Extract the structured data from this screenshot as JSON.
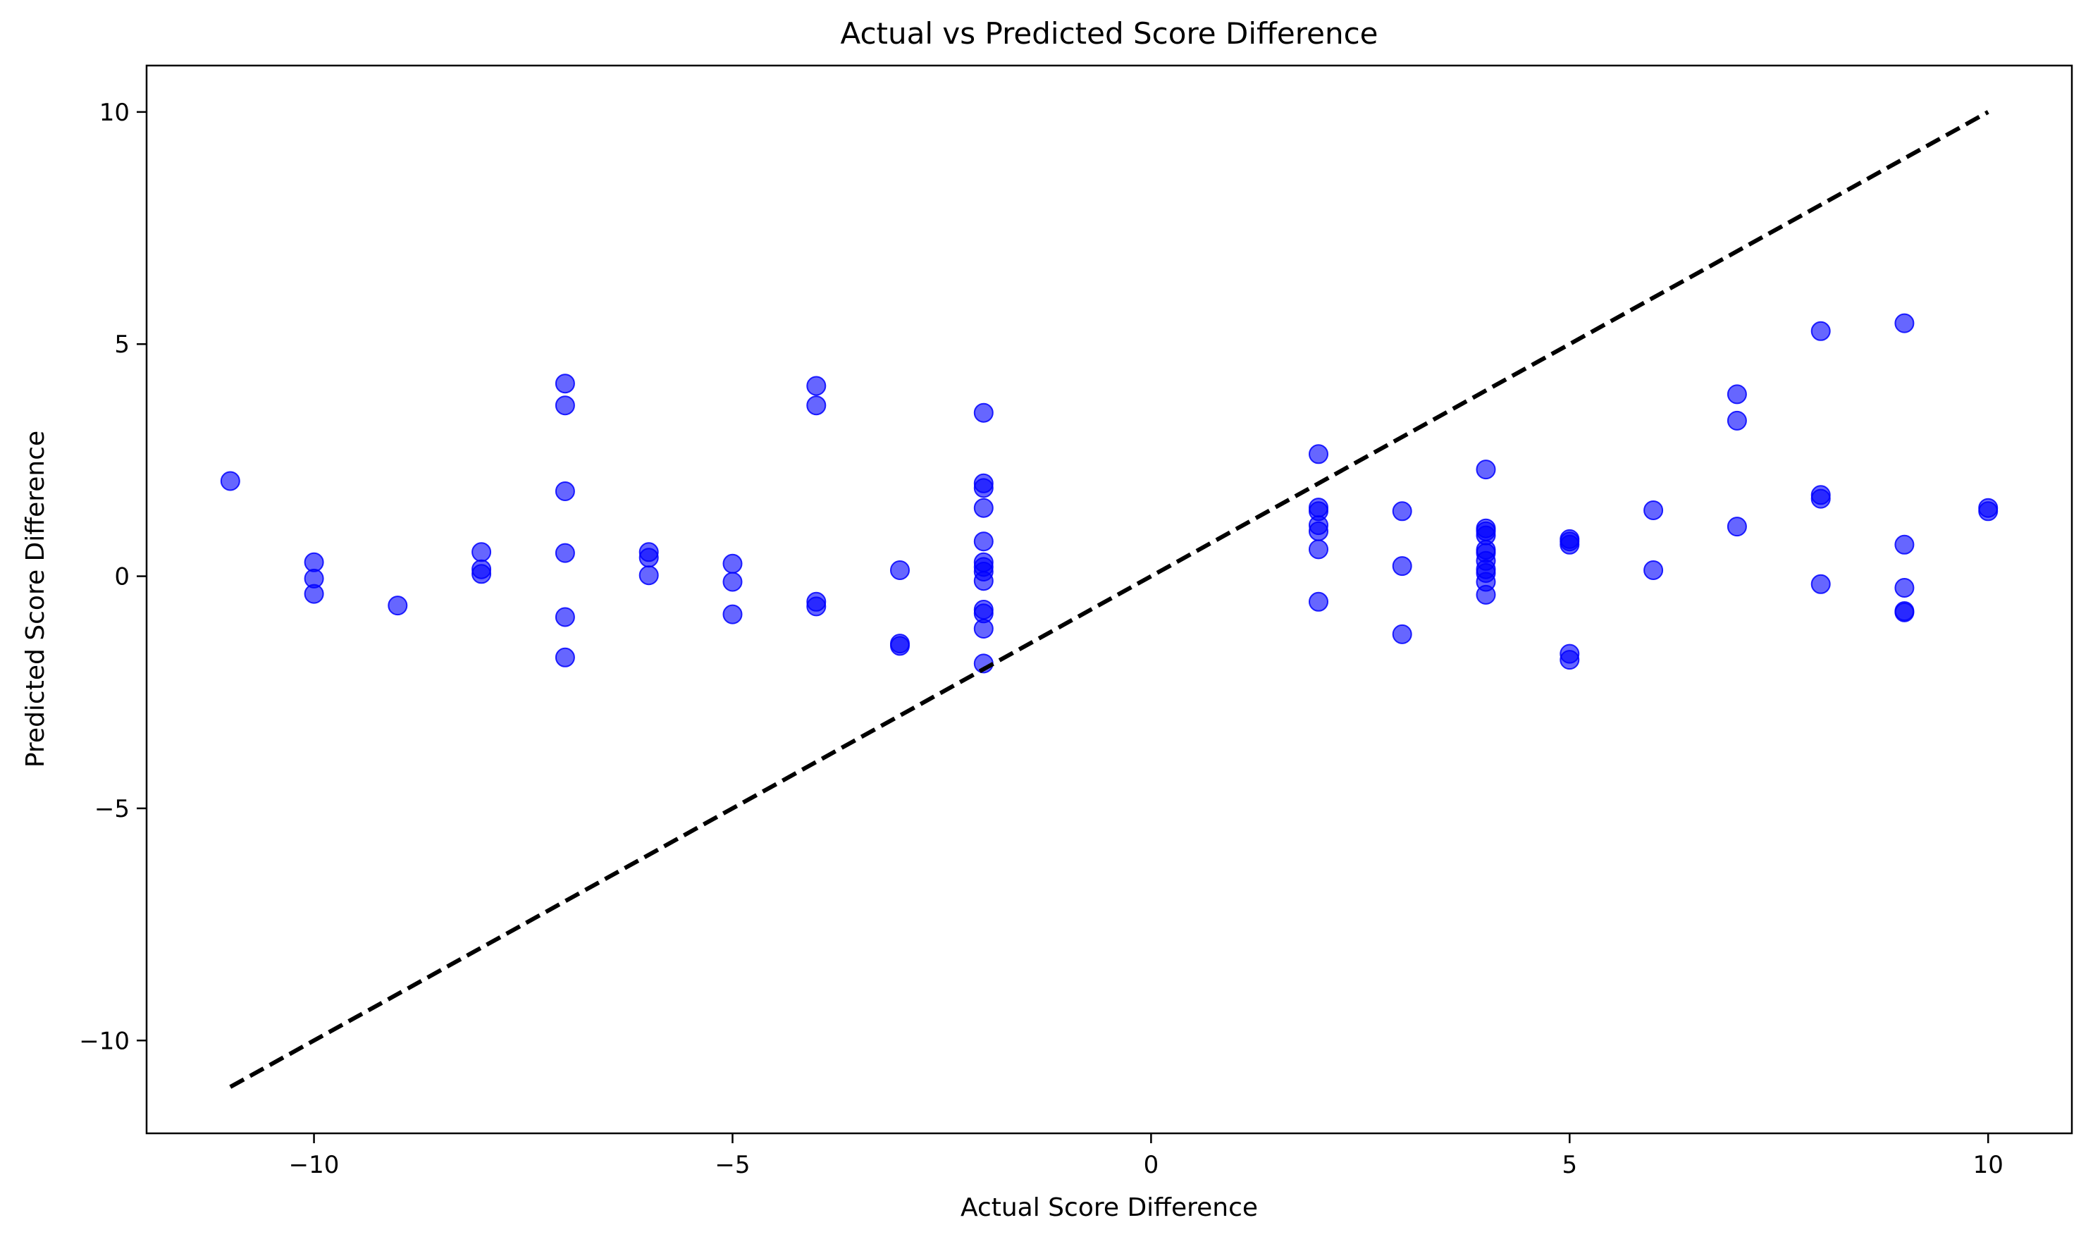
{
  "chart_data": {
    "type": "scatter",
    "title": "Actual vs Predicted Score Difference",
    "xlabel": "Actual Score Difference",
    "ylabel": "Predicted Score Difference",
    "xlim": [
      -12,
      11
    ],
    "ylim": [
      -12,
      11
    ],
    "xticks": [
      -10,
      -5,
      0,
      5,
      10
    ],
    "yticks": [
      -10,
      -5,
      0,
      5,
      10
    ],
    "xtick_labels": [
      "−10",
      "−5",
      "0",
      "5",
      "10"
    ],
    "ytick_labels": [
      "−10",
      "−5",
      "0",
      "5",
      "10"
    ],
    "grid": false,
    "point_color": "#0000ff",
    "point_alpha": 0.6,
    "reference_line": {
      "style": "dashed",
      "color": "#000000",
      "x": [
        -11,
        10
      ],
      "y": [
        -11,
        10
      ]
    },
    "points": [
      [
        -11,
        2.05
      ],
      [
        -10,
        0.3
      ],
      [
        -10,
        -0.05
      ],
      [
        -10,
        -0.38
      ],
      [
        -9,
        -0.63
      ],
      [
        -8,
        0.52
      ],
      [
        -8,
        0.15
      ],
      [
        -8,
        0.05
      ],
      [
        -7,
        4.15
      ],
      [
        -7,
        3.68
      ],
      [
        -7,
        1.83
      ],
      [
        -7,
        0.5
      ],
      [
        -7,
        -0.88
      ],
      [
        -7,
        -1.75
      ],
      [
        -6,
        0.52
      ],
      [
        -6,
        0.4
      ],
      [
        -6,
        0.02
      ],
      [
        -5,
        0.27
      ],
      [
        -5,
        -0.12
      ],
      [
        -5,
        -0.82
      ],
      [
        -4,
        4.1
      ],
      [
        -4,
        3.68
      ],
      [
        -4,
        -0.55
      ],
      [
        -4,
        -0.65
      ],
      [
        -3,
        0.13
      ],
      [
        -3,
        -1.45
      ],
      [
        -3,
        -1.5
      ],
      [
        -2,
        3.52
      ],
      [
        -2,
        2.0
      ],
      [
        -2,
        1.9
      ],
      [
        -2,
        1.47
      ],
      [
        -2,
        0.75
      ],
      [
        -2,
        0.3
      ],
      [
        -2,
        0.2
      ],
      [
        -2,
        0.1
      ],
      [
        -2,
        -0.1
      ],
      [
        -2,
        -0.72
      ],
      [
        -2,
        -0.8
      ],
      [
        -2,
        -1.13
      ],
      [
        -2,
        -1.88
      ],
      [
        2,
        2.63
      ],
      [
        2,
        1.48
      ],
      [
        2,
        1.4
      ],
      [
        2,
        1.1
      ],
      [
        2,
        0.97
      ],
      [
        2,
        0.58
      ],
      [
        2,
        -0.55
      ],
      [
        3,
        1.4
      ],
      [
        3,
        0.22
      ],
      [
        3,
        -1.25
      ],
      [
        4,
        2.3
      ],
      [
        4,
        1.03
      ],
      [
        4,
        0.97
      ],
      [
        4,
        0.88
      ],
      [
        4,
        0.57
      ],
      [
        4,
        0.5
      ],
      [
        4,
        0.33
      ],
      [
        4,
        0.15
      ],
      [
        4,
        0.07
      ],
      [
        4,
        -0.12
      ],
      [
        4,
        -0.4
      ],
      [
        5,
        0.8
      ],
      [
        5,
        0.75
      ],
      [
        5,
        0.68
      ],
      [
        5,
        -1.67
      ],
      [
        5,
        -1.8
      ],
      [
        6,
        1.42
      ],
      [
        6,
        0.13
      ],
      [
        7,
        3.92
      ],
      [
        7,
        3.35
      ],
      [
        7,
        1.07
      ],
      [
        8,
        5.28
      ],
      [
        8,
        1.75
      ],
      [
        8,
        1.67
      ],
      [
        8,
        -0.17
      ],
      [
        9,
        5.45
      ],
      [
        9,
        0.68
      ],
      [
        9,
        -0.25
      ],
      [
        9,
        -0.75
      ],
      [
        9,
        -0.78
      ],
      [
        10,
        1.47
      ],
      [
        10,
        1.4
      ]
    ]
  }
}
